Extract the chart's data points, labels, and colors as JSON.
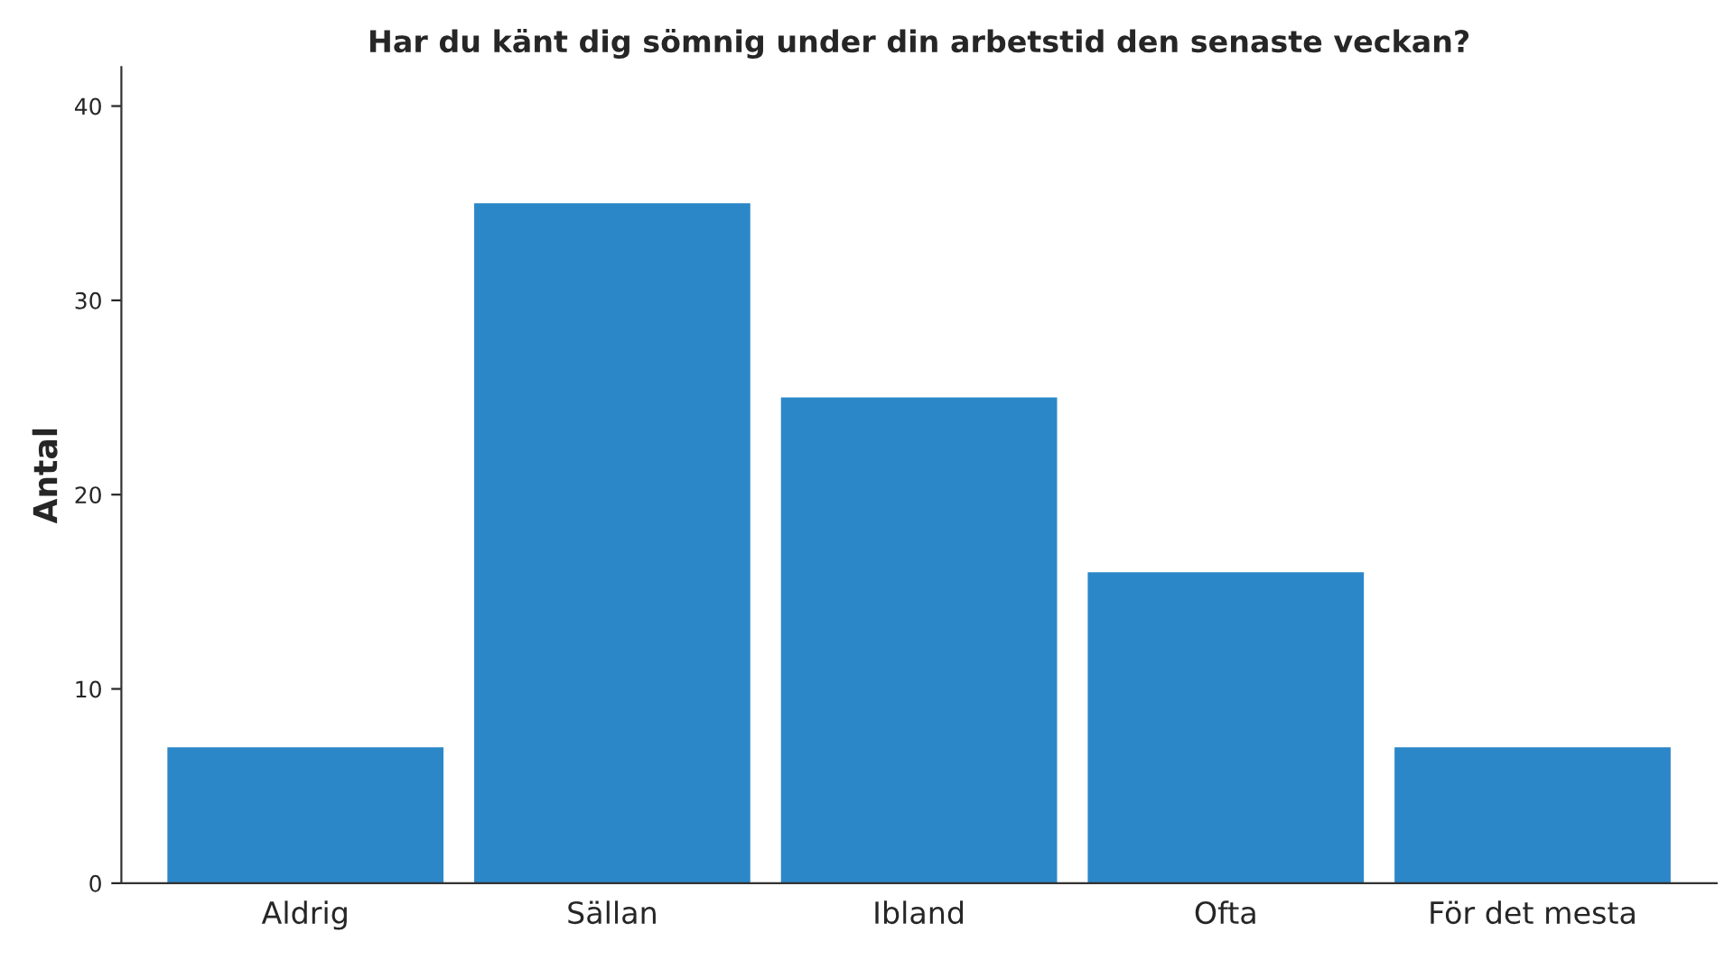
{
  "chart_data": {
    "type": "bar",
    "title": "Har du känt dig sömnig under din arbetstid den senaste veckan?",
    "ylabel": "Antal",
    "categories": [
      "Aldrig",
      "Sällan",
      "Ibland",
      "Ofta",
      "För det mesta"
    ],
    "values": [
      7,
      35,
      25,
      16,
      7
    ],
    "color": "#2b87c8",
    "ylim": [
      0,
      42
    ],
    "yticks": [
      0,
      10,
      20,
      30,
      40
    ],
    "grid": false,
    "legend": false
  }
}
